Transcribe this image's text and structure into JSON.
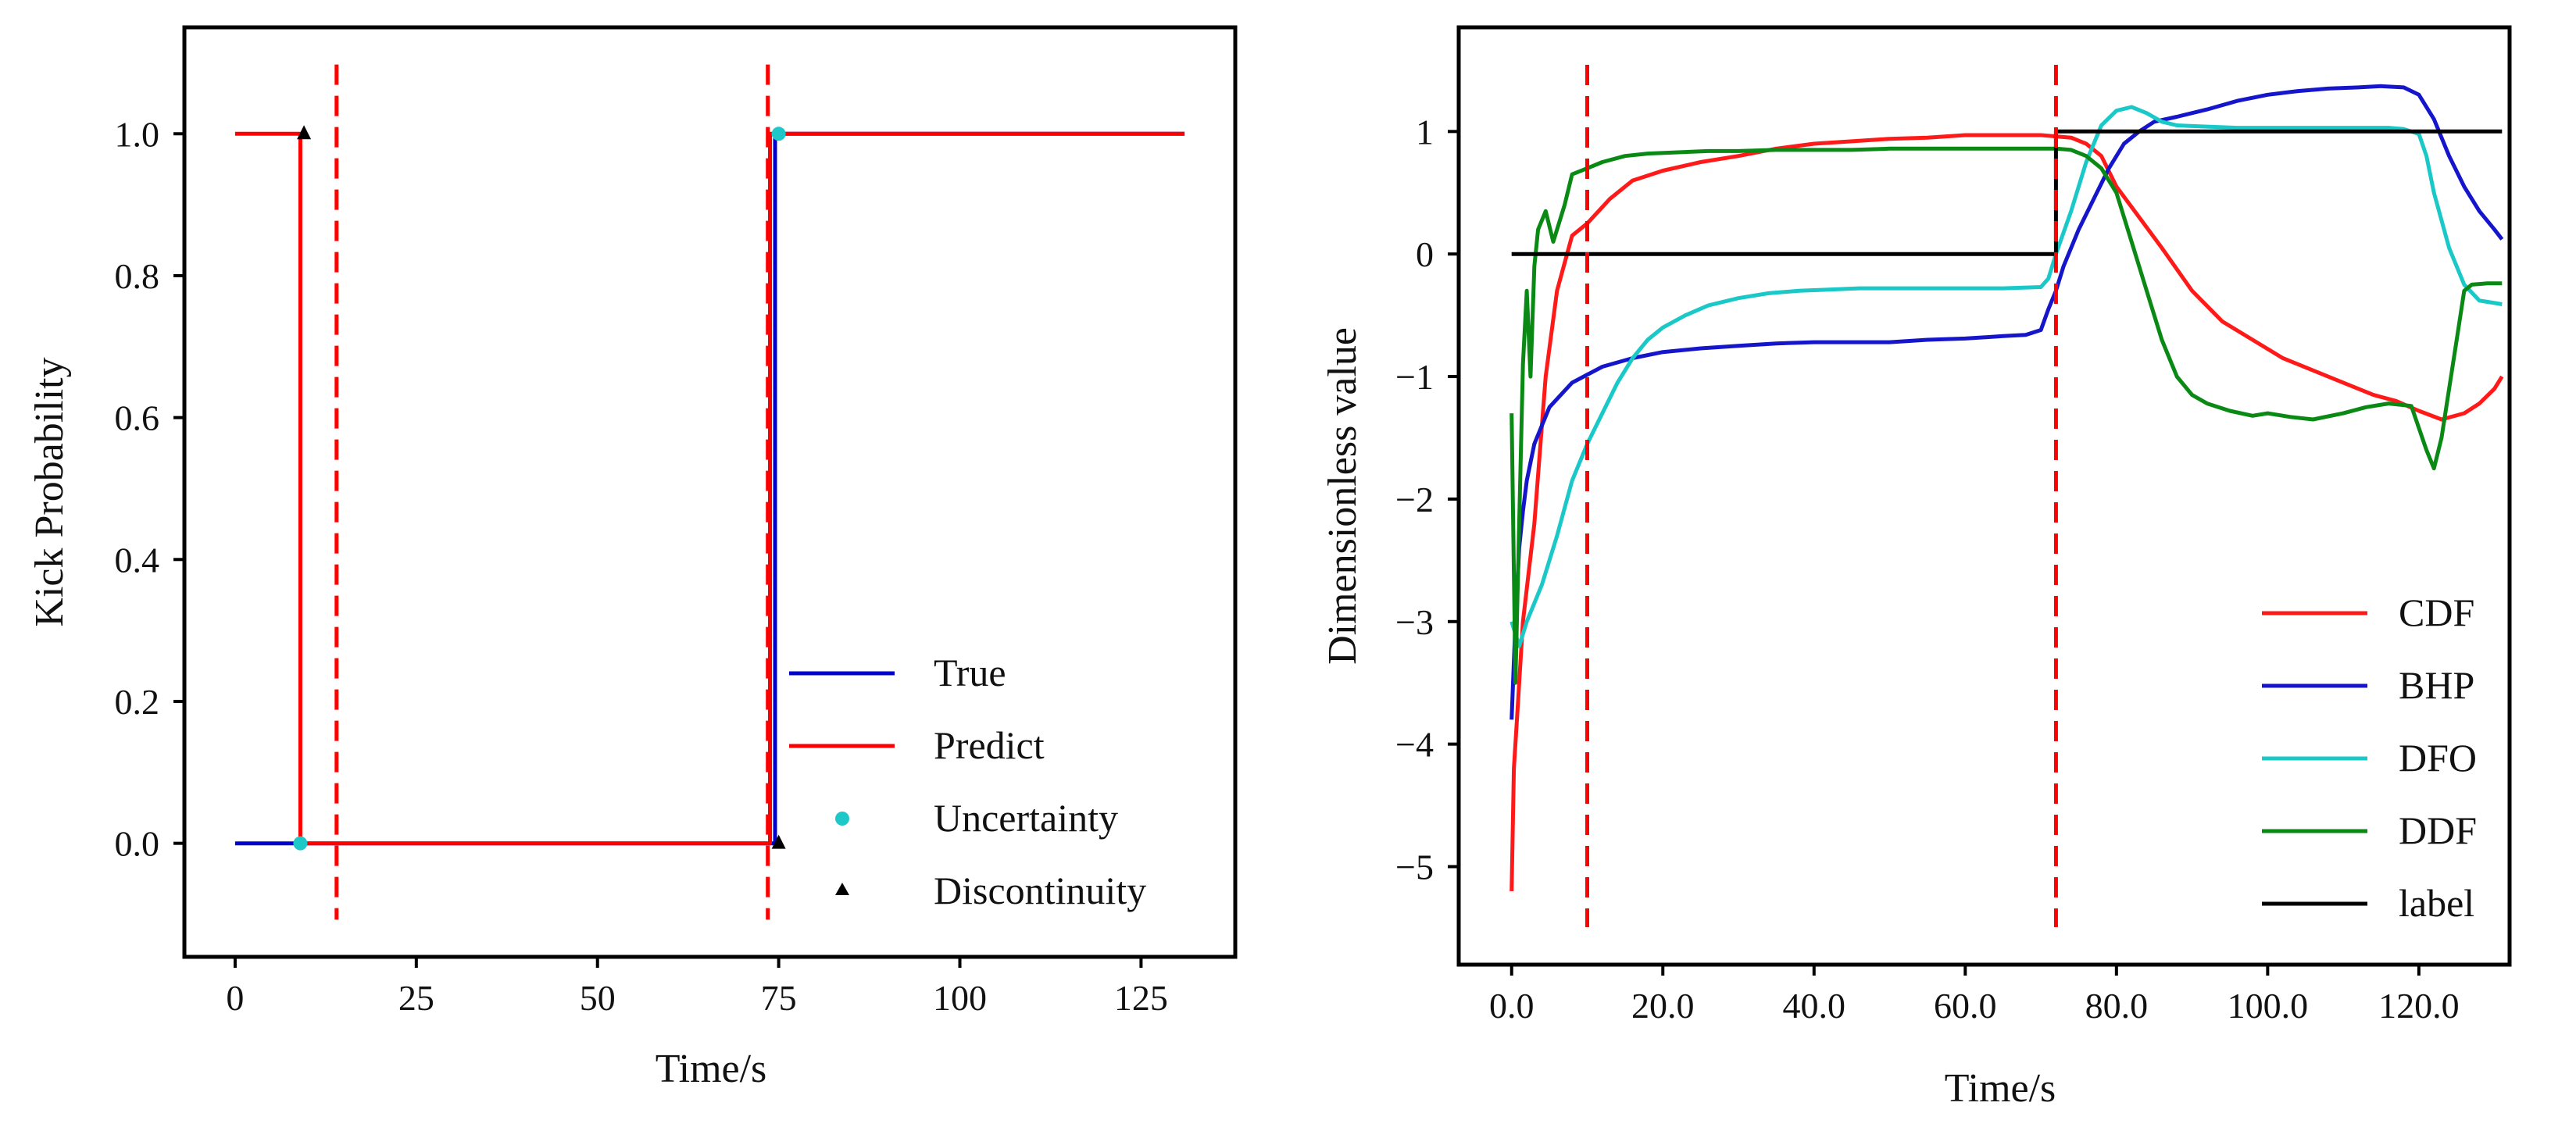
{
  "chart_data": [
    {
      "type": "line",
      "xlabel": "Time/s",
      "ylabel": "Kick Probability",
      "xlim": [
        -7,
        138
      ],
      "ylim": [
        -0.16,
        1.15
      ],
      "xticks": [
        0,
        25,
        50,
        75,
        100,
        125
      ],
      "xtick_labels": [
        "0",
        "25",
        "50",
        "75",
        "100",
        "125"
      ],
      "yticks": [
        0.0,
        0.2,
        0.4,
        0.6,
        0.8,
        1.0
      ],
      "ytick_labels": [
        "0.0",
        "0.2",
        "0.4",
        "0.6",
        "0.8",
        "1.0"
      ],
      "legend_position": "bottom-right",
      "series": [
        {
          "name": "True",
          "color": "#0000cc",
          "style": "solid",
          "points": [
            [
              0,
              0
            ],
            [
              74.5,
              0
            ],
            [
              74.5,
              1
            ],
            [
              131,
              1
            ]
          ]
        },
        {
          "name": "Predict",
          "color": "#ff0000",
          "style": "solid",
          "points": [
            [
              0,
              1
            ],
            [
              9,
              1
            ],
            [
              9,
              0
            ],
            [
              73.8,
              0
            ],
            [
              73.8,
              1
            ],
            [
              131,
              1
            ]
          ]
        }
      ],
      "markers": [
        {
          "name": "Uncertainty",
          "color": "#1fc8c8",
          "shape": "circle",
          "points": [
            [
              9,
              0
            ],
            [
              75,
              1
            ]
          ]
        },
        {
          "name": "Discontinuity",
          "color": "#000000",
          "shape": "triangle",
          "points": [
            [
              9.5,
              1
            ],
            [
              75,
              0
            ]
          ]
        }
      ],
      "vlines": [
        {
          "x": 14,
          "color": "#ff0000",
          "style": "dashed"
        },
        {
          "x": 73.5,
          "color": "#ff0000",
          "style": "dashed"
        }
      ],
      "legend": [
        "True",
        "Predict",
        "Uncertainty",
        "Discontinuity"
      ]
    },
    {
      "type": "line",
      "xlabel": "Time/s",
      "ylabel": "Dimensionless value",
      "xlim": [
        -7,
        132
      ],
      "ylim": [
        -5.8,
        1.85
      ],
      "xticks": [
        0,
        20,
        40,
        60,
        80,
        100,
        120
      ],
      "xtick_labels": [
        "0.0",
        "20.0",
        "40.0",
        "60.0",
        "80.0",
        "100.0",
        "120.0"
      ],
      "yticks": [
        -5,
        -4,
        -3,
        -2,
        -1,
        0,
        1
      ],
      "ytick_labels": [
        "−5",
        "−4",
        "−3",
        "−2",
        "−1",
        "0",
        "1"
      ],
      "legend_position": "bottom-right",
      "series": [
        {
          "name": "CDF",
          "color": "#ff1a1a",
          "points": [
            [
              0,
              -5.2
            ],
            [
              0.3,
              -4.2
            ],
            [
              0.8,
              -3.7
            ],
            [
              1.5,
              -3.0
            ],
            [
              3,
              -2.2
            ],
            [
              4.5,
              -1.0
            ],
            [
              6,
              -0.3
            ],
            [
              8,
              0.15
            ],
            [
              10,
              0.25
            ],
            [
              13,
              0.45
            ],
            [
              16,
              0.6
            ],
            [
              20,
              0.68
            ],
            [
              25,
              0.75
            ],
            [
              30,
              0.8
            ],
            [
              35,
              0.86
            ],
            [
              40,
              0.9
            ],
            [
              45,
              0.92
            ],
            [
              50,
              0.94
            ],
            [
              55,
              0.95
            ],
            [
              60,
              0.97
            ],
            [
              65,
              0.97
            ],
            [
              70,
              0.97
            ],
            [
              72,
              0.96
            ],
            [
              74,
              0.95
            ],
            [
              76,
              0.9
            ],
            [
              78,
              0.8
            ],
            [
              80,
              0.55
            ],
            [
              83,
              0.3
            ],
            [
              86,
              0.05
            ],
            [
              90,
              -0.3
            ],
            [
              94,
              -0.55
            ],
            [
              98,
              -0.7
            ],
            [
              102,
              -0.85
            ],
            [
              106,
              -0.95
            ],
            [
              110,
              -1.05
            ],
            [
              114,
              -1.15
            ],
            [
              117,
              -1.2
            ],
            [
              120,
              -1.28
            ],
            [
              123,
              -1.35
            ],
            [
              126,
              -1.3
            ],
            [
              128,
              -1.22
            ],
            [
              130,
              -1.1
            ],
            [
              131,
              -1.0
            ]
          ]
        },
        {
          "name": "BHP",
          "color": "#1515cc",
          "points": [
            [
              0,
              -3.8
            ],
            [
              0.5,
              -3.0
            ],
            [
              1,
              -2.4
            ],
            [
              1.5,
              -2.1
            ],
            [
              2,
              -1.85
            ],
            [
              3,
              -1.55
            ],
            [
              5,
              -1.25
            ],
            [
              8,
              -1.05
            ],
            [
              12,
              -0.92
            ],
            [
              16,
              -0.85
            ],
            [
              20,
              -0.8
            ],
            [
              25,
              -0.77
            ],
            [
              30,
              -0.75
            ],
            [
              35,
              -0.73
            ],
            [
              40,
              -0.72
            ],
            [
              45,
              -0.72
            ],
            [
              50,
              -0.72
            ],
            [
              55,
              -0.7
            ],
            [
              60,
              -0.69
            ],
            [
              65,
              -0.67
            ],
            [
              68,
              -0.66
            ],
            [
              70,
              -0.62
            ],
            [
              71,
              -0.45
            ],
            [
              72,
              -0.3
            ],
            [
              73,
              -0.1
            ],
            [
              75,
              0.2
            ],
            [
              77,
              0.45
            ],
            [
              79,
              0.7
            ],
            [
              81,
              0.9
            ],
            [
              83,
              1.0
            ],
            [
              85,
              1.08
            ],
            [
              88,
              1.12
            ],
            [
              92,
              1.18
            ],
            [
              96,
              1.25
            ],
            [
              100,
              1.3
            ],
            [
              104,
              1.33
            ],
            [
              108,
              1.35
            ],
            [
              112,
              1.36
            ],
            [
              115,
              1.37
            ],
            [
              118,
              1.36
            ],
            [
              120,
              1.3
            ],
            [
              122,
              1.1
            ],
            [
              124,
              0.8
            ],
            [
              126,
              0.55
            ],
            [
              128,
              0.35
            ],
            [
              130,
              0.2
            ],
            [
              131,
              0.12
            ]
          ]
        },
        {
          "name": "DFO",
          "color": "#1ac8c8",
          "points": [
            [
              0,
              -3.0
            ],
            [
              1,
              -3.2
            ],
            [
              2,
              -3.0
            ],
            [
              4,
              -2.7
            ],
            [
              6,
              -2.3
            ],
            [
              8,
              -1.85
            ],
            [
              10,
              -1.55
            ],
            [
              12,
              -1.3
            ],
            [
              14,
              -1.05
            ],
            [
              16,
              -0.85
            ],
            [
              18,
              -0.7
            ],
            [
              20,
              -0.6
            ],
            [
              23,
              -0.5
            ],
            [
              26,
              -0.42
            ],
            [
              30,
              -0.36
            ],
            [
              34,
              -0.32
            ],
            [
              38,
              -0.3
            ],
            [
              42,
              -0.29
            ],
            [
              46,
              -0.28
            ],
            [
              50,
              -0.28
            ],
            [
              55,
              -0.28
            ],
            [
              60,
              -0.28
            ],
            [
              65,
              -0.28
            ],
            [
              70,
              -0.27
            ],
            [
              71,
              -0.2
            ],
            [
              72,
              0.0
            ],
            [
              74,
              0.35
            ],
            [
              76,
              0.75
            ],
            [
              78,
              1.05
            ],
            [
              80,
              1.17
            ],
            [
              82,
              1.2
            ],
            [
              84,
              1.15
            ],
            [
              86,
              1.08
            ],
            [
              88,
              1.05
            ],
            [
              92,
              1.04
            ],
            [
              96,
              1.03
            ],
            [
              100,
              1.03
            ],
            [
              104,
              1.03
            ],
            [
              108,
              1.03
            ],
            [
              112,
              1.03
            ],
            [
              116,
              1.03
            ],
            [
              118,
              1.02
            ],
            [
              120,
              0.98
            ],
            [
              121,
              0.8
            ],
            [
              122,
              0.5
            ],
            [
              124,
              0.05
            ],
            [
              126,
              -0.25
            ],
            [
              128,
              -0.38
            ],
            [
              130,
              -0.4
            ],
            [
              131,
              -0.41
            ]
          ]
        },
        {
          "name": "DDF",
          "color": "#0a8a14",
          "points": [
            [
              0,
              -1.3
            ],
            [
              0.5,
              -3.5
            ],
            [
              1,
              -2.2
            ],
            [
              1.5,
              -0.9
            ],
            [
              2,
              -0.3
            ],
            [
              2.5,
              -1.0
            ],
            [
              3,
              -0.1
            ],
            [
              3.5,
              0.2
            ],
            [
              4.5,
              0.35
            ],
            [
              5.5,
              0.1
            ],
            [
              7,
              0.4
            ],
            [
              8,
              0.65
            ],
            [
              10,
              0.7
            ],
            [
              12,
              0.75
            ],
            [
              15,
              0.8
            ],
            [
              18,
              0.82
            ],
            [
              22,
              0.83
            ],
            [
              26,
              0.84
            ],
            [
              30,
              0.84
            ],
            [
              35,
              0.85
            ],
            [
              40,
              0.85
            ],
            [
              45,
              0.85
            ],
            [
              50,
              0.86
            ],
            [
              55,
              0.86
            ],
            [
              60,
              0.86
            ],
            [
              65,
              0.86
            ],
            [
              70,
              0.86
            ],
            [
              72,
              0.86
            ],
            [
              74,
              0.85
            ],
            [
              76,
              0.8
            ],
            [
              78,
              0.7
            ],
            [
              80,
              0.5
            ],
            [
              82,
              0.1
            ],
            [
              84,
              -0.3
            ],
            [
              86,
              -0.7
            ],
            [
              88,
              -1.0
            ],
            [
              90,
              -1.15
            ],
            [
              92,
              -1.22
            ],
            [
              95,
              -1.28
            ],
            [
              98,
              -1.32
            ],
            [
              100,
              -1.3
            ],
            [
              103,
              -1.33
            ],
            [
              106,
              -1.35
            ],
            [
              110,
              -1.3
            ],
            [
              113,
              -1.25
            ],
            [
              116,
              -1.22
            ],
            [
              119,
              -1.24
            ],
            [
              121,
              -1.6
            ],
            [
              122,
              -1.75
            ],
            [
              123,
              -1.5
            ],
            [
              124,
              -1.1
            ],
            [
              125,
              -0.7
            ],
            [
              126,
              -0.3
            ],
            [
              127,
              -0.25
            ],
            [
              129,
              -0.24
            ],
            [
              131,
              -0.24
            ]
          ]
        },
        {
          "name": "label",
          "color": "#000000",
          "points": [
            [
              0,
              0
            ],
            [
              72,
              0
            ],
            [
              72,
              1
            ],
            [
              131,
              1
            ]
          ]
        }
      ],
      "vlines": [
        {
          "x": 10,
          "color": "#ff0000",
          "style": "dashed"
        },
        {
          "x": 72,
          "color": "#ff0000",
          "style": "dashed"
        }
      ],
      "legend": [
        "CDF",
        "BHP",
        "DFO",
        "DDF",
        "label"
      ]
    }
  ]
}
